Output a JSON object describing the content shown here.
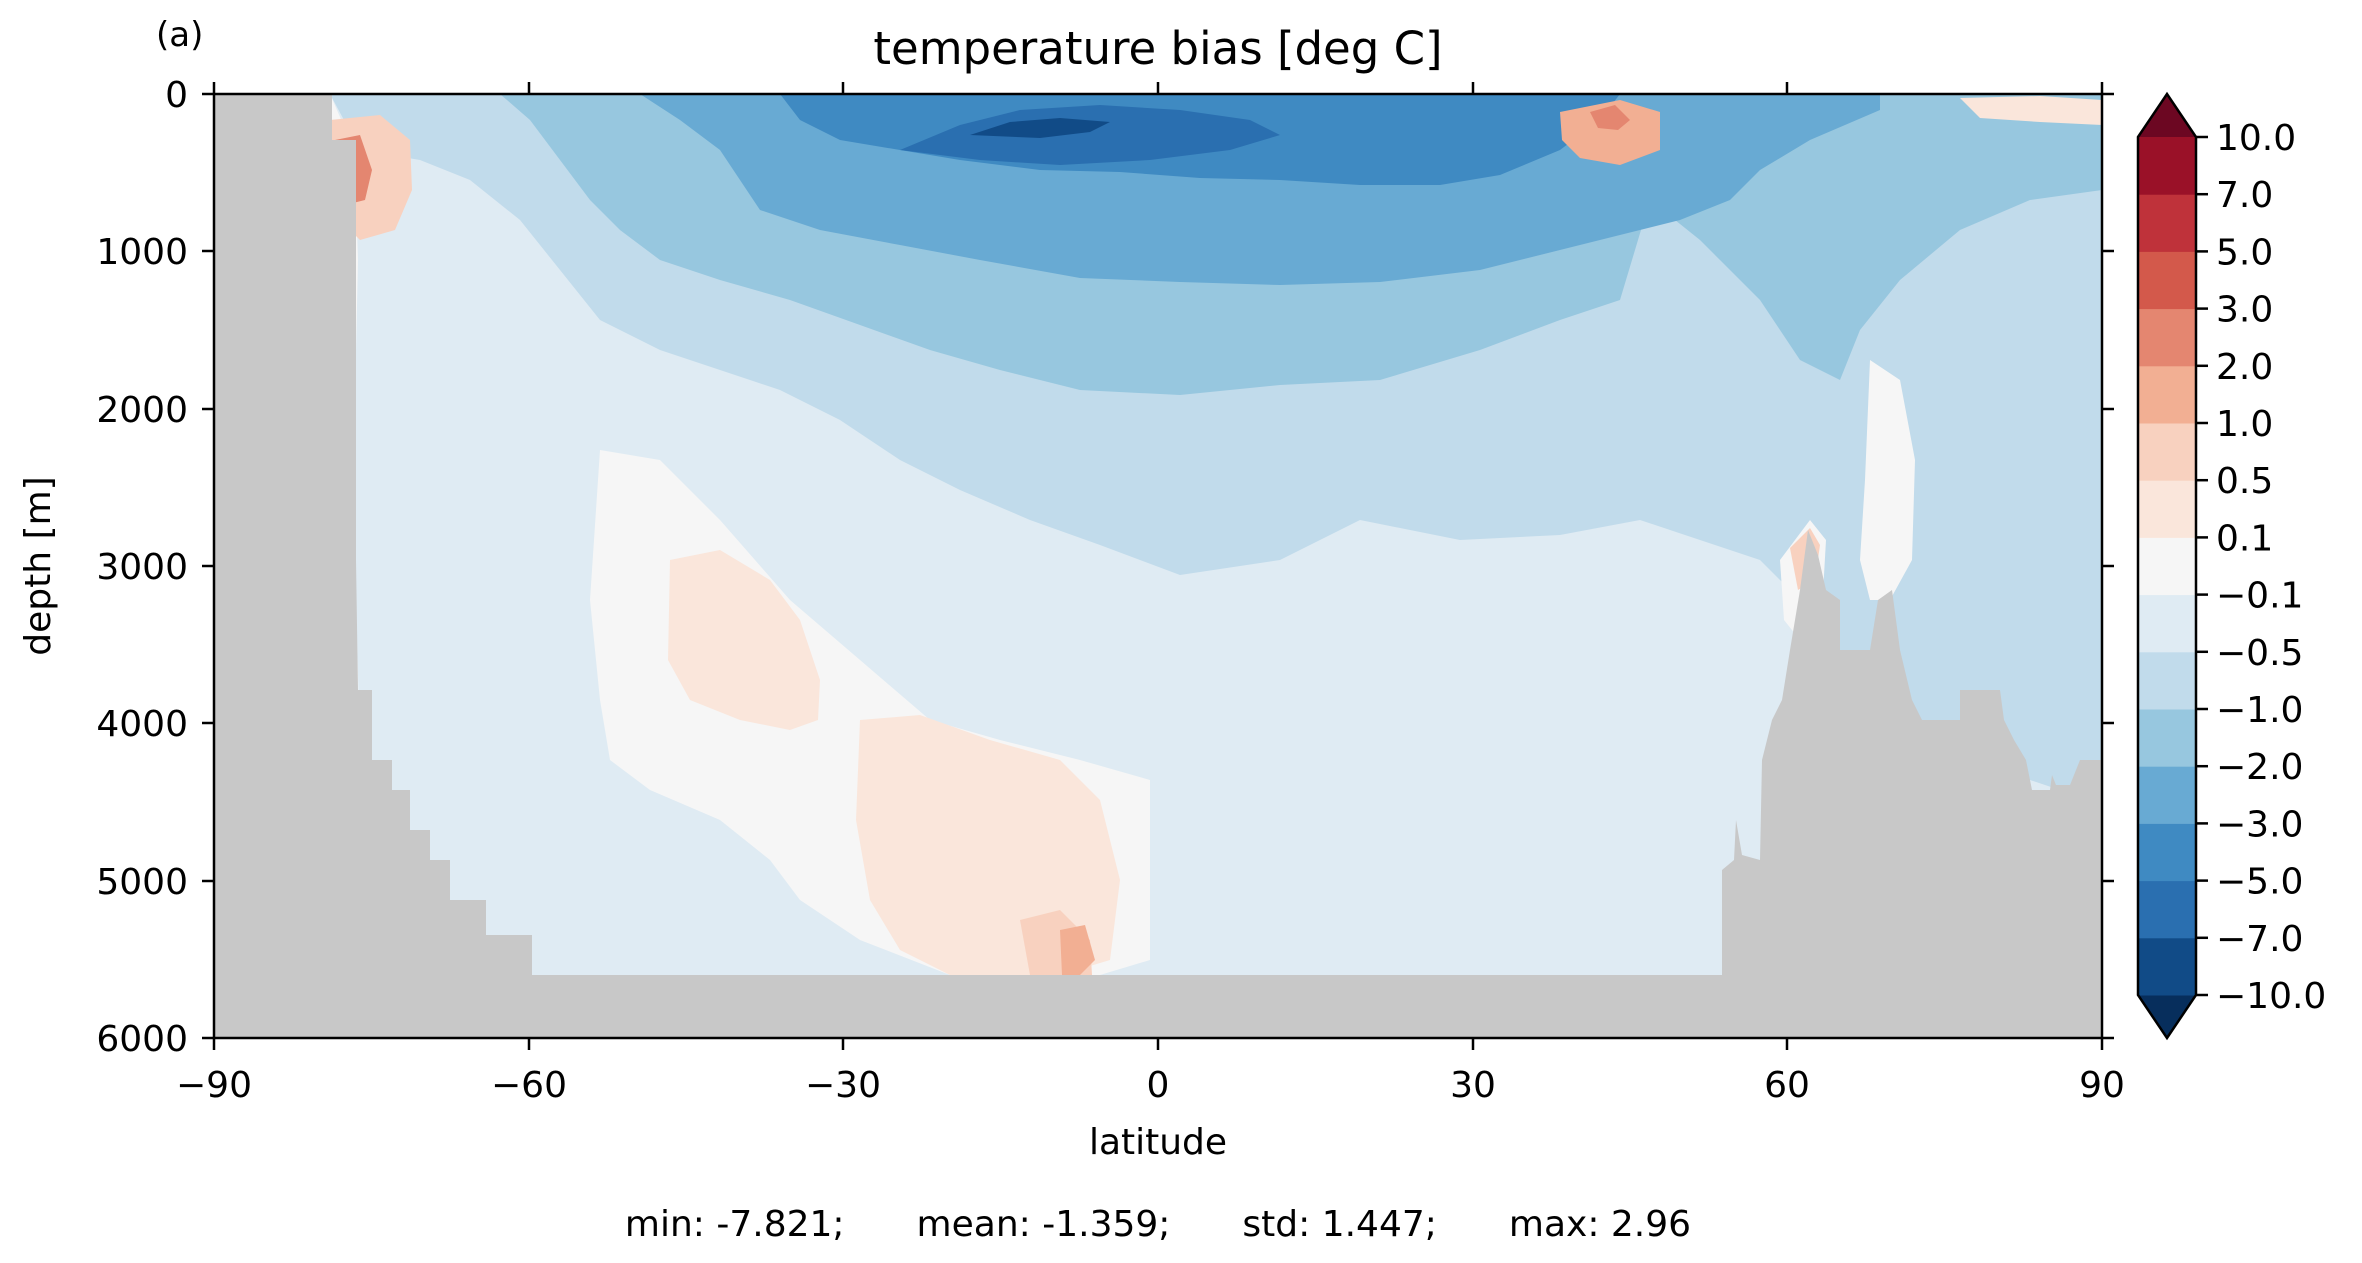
{
  "panel_label": "(a)",
  "chart_data": {
    "type": "heatmap",
    "title": "temperature bias [deg C]",
    "xlabel": "latitude",
    "ylabel": "depth [m]",
    "xlim": [
      -90,
      90
    ],
    "ylim": [
      6000,
      0
    ],
    "x_inverted": false,
    "y_inverted": true,
    "x_ticks": [
      -90,
      -60,
      -30,
      0,
      30,
      60,
      90
    ],
    "x_tick_labels": [
      "−90",
      "−60",
      "−30",
      "0",
      "30",
      "60",
      "90"
    ],
    "y_ticks": [
      0,
      1000,
      2000,
      3000,
      4000,
      5000,
      6000
    ],
    "y_tick_labels": [
      "0",
      "1000",
      "2000",
      "3000",
      "4000",
      "5000",
      "6000"
    ],
    "grid": false,
    "land_color": "#c8c8c8",
    "colorbar": {
      "placement": "right",
      "extend": "both",
      "levels": [
        -10.0,
        -7.0,
        -5.0,
        -3.0,
        -2.0,
        -1.0,
        -0.5,
        -0.1,
        0.1,
        0.5,
        1.0,
        2.0,
        3.0,
        5.0,
        7.0,
        10.0
      ],
      "tick_labels": [
        "−10.0",
        "−7.0",
        "−5.0",
        "−3.0",
        "−2.0",
        "−1.0",
        "−0.5",
        "−0.1",
        "0.1",
        "0.5",
        "1.0",
        "2.0",
        "3.0",
        "5.0",
        "7.0",
        "10.0"
      ],
      "colors": [
        "#114b87",
        "#2a6fb0",
        "#3f8ac2",
        "#68aad3",
        "#97c7df",
        "#c1dbeb",
        "#dfebf3",
        "#f6f6f6",
        "#fae6db",
        "#f8d1bf",
        "#f2af93",
        "#e48670",
        "#d3594b",
        "#bf323a",
        "#9a1128"
      ],
      "under_color": "#072e5c",
      "over_color": "#6c0722"
    },
    "stats": {
      "text": "min: -7.821;  mean: -1.359;  std: 1.447;  max: 2.96",
      "min": -7.821,
      "mean": -1.359,
      "std": 1.447,
      "max": 2.96
    }
  }
}
